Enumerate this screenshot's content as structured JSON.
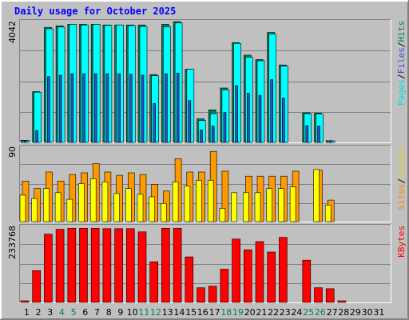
{
  "chart_data": {
    "type": "bar",
    "title": "Daily usage for October 2025",
    "categories": [
      "1",
      "2",
      "3",
      "4",
      "5",
      "6",
      "7",
      "8",
      "9",
      "10",
      "11",
      "12",
      "13",
      "14",
      "15",
      "16",
      "17",
      "18",
      "19",
      "20",
      "21",
      "22",
      "23",
      "24",
      "25",
      "26",
      "27",
      "28",
      "29",
      "30",
      "31"
    ],
    "weekend_days": [
      "4",
      "5",
      "11",
      "12",
      "18",
      "19",
      "25",
      "26"
    ],
    "panels": [
      {
        "id": "hits",
        "max_label": "4042",
        "ylim": [
          0,
          4042
        ],
        "legend": [
          "Pages",
          "/",
          "Files",
          "/",
          "Hits"
        ],
        "series": [
          {
            "name": "Hits",
            "color": "#00805c",
            "values": [
              70,
              1700,
              3850,
              3900,
              3950,
              3950,
              3950,
              3930,
              3930,
              3930,
              3930,
              2270,
              3950,
              4042,
              2450,
              790,
              1090,
              1820,
              3340,
              2920,
              2770,
              3680,
              2590,
              0,
              990,
              980,
              60,
              0,
              0,
              0,
              0
            ]
          },
          {
            "name": "Files",
            "color": "#00ffff",
            "values": [
              60,
              1680,
              3800,
              3860,
              3950,
              3930,
              3950,
              3920,
              3930,
              3910,
              3880,
              2230,
              3870,
              4000,
              2450,
              730,
              960,
              1760,
              3310,
              2850,
              2730,
              3630,
              2550,
              0,
              960,
              950,
              50,
              0,
              0,
              0,
              0
            ]
          },
          {
            "name": "Pages",
            "color": "#2e51d1",
            "values": [
              10,
              400,
              2200,
              2250,
              2300,
              2300,
              2300,
              2300,
              2300,
              2280,
              2250,
              1300,
              2300,
              2320,
              1400,
              420,
              550,
              1000,
              1900,
              1650,
              1580,
              2100,
              1480,
              0,
              560,
              550,
              30,
              0,
              0,
              0,
              0
            ]
          }
        ]
      },
      {
        "id": "visits",
        "max_label": "90",
        "ylim": [
          0,
          90
        ],
        "legend": [
          "Sites",
          "/",
          "Visits"
        ],
        "series": [
          {
            "name": "Visits",
            "color": "#ff9900",
            "values": [
              49,
              40,
              60,
              49,
              57,
              59,
              70,
              60,
              56,
              59,
              57,
              45,
              37,
              76,
              60,
              60,
              85,
              61,
              0,
              55,
              55,
              55,
              55,
              61,
              0,
              62,
              26,
              0,
              0,
              0,
              0
            ]
          },
          {
            "name": "Sites",
            "color": "#ffff00",
            "values": [
              32,
              28,
              40,
              35,
              27,
              46,
              52,
              48,
              34,
              40,
              33,
              30,
              22,
              48,
              43,
              50,
              50,
              16,
              35,
              35,
              35,
              40,
              40,
              42,
              0,
              63,
              20,
              0,
              0,
              0,
              0
            ]
          }
        ]
      },
      {
        "id": "kbytes",
        "max_label": "233768",
        "ylim": [
          0,
          233768
        ],
        "legend": [
          "KBytes"
        ],
        "series": [
          {
            "name": "KBytes",
            "color": "#ff0000",
            "values": [
              3000,
              98000,
              210000,
              225000,
              228000,
              228000,
              228000,
              227000,
              227000,
              227000,
              217000,
              125000,
              228000,
              228000,
              140000,
              45000,
              50000,
              102000,
              195000,
              162000,
              187000,
              155000,
              200000,
              0,
              130000,
              45000,
              42000,
              3000,
              0,
              0,
              0
            ]
          }
        ]
      }
    ]
  }
}
